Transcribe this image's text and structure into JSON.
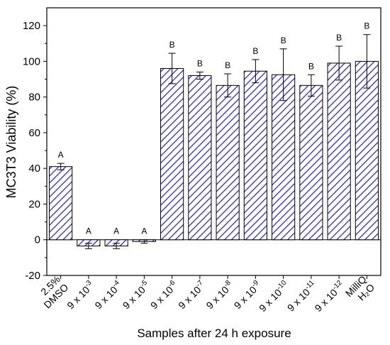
{
  "chart_data": {
    "type": "bar",
    "xlabel": "Samples after 24 h exposure",
    "ylabel": "MC3T3 Viability (%)",
    "ylim": [
      -20,
      130
    ],
    "yticks": [
      -20,
      0,
      20,
      40,
      60,
      80,
      100,
      120
    ],
    "grid": false,
    "bar_color": "#2b2bd1",
    "bar_hatch": "diagonal-lines",
    "categories": [
      {
        "base": "2.5%",
        "sup": "",
        "line2": "DMSO"
      },
      {
        "base": "9 x 10",
        "sup": "-3",
        "line2": ""
      },
      {
        "base": "9 x 10",
        "sup": "-4",
        "line2": ""
      },
      {
        "base": "9 x 10",
        "sup": "-5",
        "line2": ""
      },
      {
        "base": "9 x 10",
        "sup": "-6",
        "line2": ""
      },
      {
        "base": "9 x 10",
        "sup": "-7",
        "line2": ""
      },
      {
        "base": "9 x 10",
        "sup": "-8",
        "line2": ""
      },
      {
        "base": "9 x 10",
        "sup": "-9",
        "line2": ""
      },
      {
        "base": "9 x 10",
        "sup": "-10",
        "line2": ""
      },
      {
        "base": "9 x 10",
        "sup": "-11",
        "line2": ""
      },
      {
        "base": "9 x 10",
        "sup": "-12",
        "line2": ""
      },
      {
        "base": "MilliQ",
        "sup": "",
        "line2": "H₂O"
      }
    ],
    "values": [
      41,
      -3.5,
      -3.5,
      -1,
      96,
      92,
      86.5,
      94.5,
      92.5,
      86.5,
      99,
      100
    ],
    "errors": [
      1.8,
      1.5,
      1.5,
      1,
      8.5,
      2,
      6.5,
      6.5,
      14.5,
      6,
      9.5,
      15
    ],
    "significance_labels": [
      "A",
      "A",
      "A",
      "A",
      "B",
      "B",
      "B",
      "B",
      "B",
      "B",
      "B",
      "B"
    ]
  }
}
